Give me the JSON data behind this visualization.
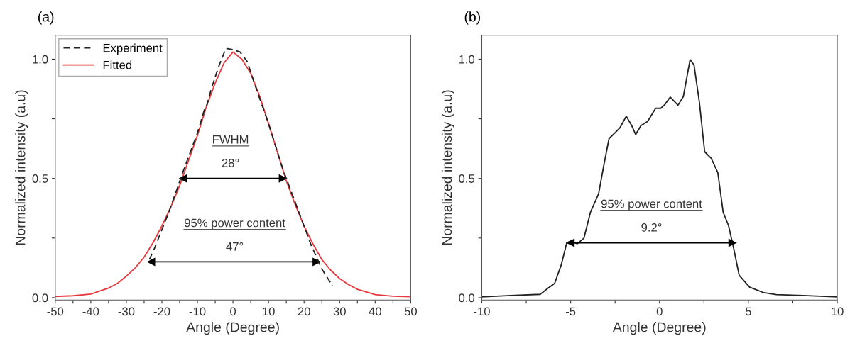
{
  "chart_data": [
    {
      "type": "line",
      "title": "(a)",
      "xlabel": "Angle (Degree)",
      "ylabel": "Normalized intensity (a.u)",
      "xlim": [
        -50,
        50
      ],
      "xticks": [
        -50,
        {
          "value": -45,
          "label": null
        },
        -40,
        {
          "value": -35,
          "label": null
        },
        -30,
        {
          "value": -25,
          "label": null
        },
        -20,
        {
          "value": -15,
          "label": null
        },
        -10,
        {
          "value": -5,
          "label": null
        },
        0,
        {
          "value": 5,
          "label": null
        },
        10,
        {
          "value": 15,
          "label": null
        },
        20,
        {
          "value": 25,
          "label": null
        },
        30,
        {
          "value": 35,
          "label": null
        },
        40,
        {
          "value": 45,
          "label": null
        },
        50
      ],
      "ylim": [
        -0.01,
        1.1
      ],
      "yticks": [
        {
          "value": 0,
          "label": "0.0"
        },
        {
          "value": 0.25,
          "label": null
        },
        0.5,
        {
          "value": 0.75,
          "label": null
        },
        {
          "value": 1,
          "label": "1.0"
        }
      ],
      "grid": false,
      "legend": "top left",
      "marker": "none",
      "series": [
        {
          "name": "Experiment",
          "color": "#222222",
          "line_style": "dashed",
          "x": [
            -23.5,
            -22,
            -18,
            -14,
            -10,
            -8,
            -7.5,
            -6,
            -4,
            -2,
            0,
            2,
            4,
            6,
            10,
            14,
            18,
            22,
            25,
            28
          ],
          "values": [
            0.16,
            0.21,
            0.36,
            0.53,
            0.69,
            0.79,
            0.8,
            0.88,
            0.97,
            1.045,
            1.04,
            1.03,
            0.99,
            0.9,
            0.73,
            0.54,
            0.38,
            0.22,
            0.12,
            0.05
          ]
        },
        {
          "name": "Fitted",
          "color": "#e8383d",
          "line_style": "solid",
          "x": [
            -50,
            -45,
            -40,
            -35,
            -32.5,
            -30,
            -27.5,
            -25,
            -22.5,
            -20,
            -17.5,
            -15,
            -12.5,
            -10,
            -7.5,
            -5,
            -2.5,
            0,
            2.5,
            5,
            7.5,
            10,
            12.5,
            15,
            17.5,
            20,
            22.5,
            25,
            27.5,
            30,
            32.5,
            35,
            40,
            45,
            50
          ],
          "values": [
            0.005,
            0.008,
            0.015,
            0.04,
            0.06,
            0.09,
            0.125,
            0.17,
            0.23,
            0.3,
            0.38,
            0.47,
            0.575,
            0.68,
            0.8,
            0.9,
            0.985,
            1.03,
            1.0,
            0.94,
            0.845,
            0.73,
            0.61,
            0.49,
            0.39,
            0.3,
            0.225,
            0.16,
            0.115,
            0.08,
            0.055,
            0.035,
            0.013,
            0.006,
            0.004
          ]
        },
        {
          "color": "#000000",
          "line_style": "solid",
          "marker": "triangle",
          "x": [
            -14,
            14
          ],
          "values": [
            0.5,
            0.5
          ]
        },
        {
          "color": "#000000",
          "line_style": "solid",
          "marker": "triangle",
          "x": [
            -23,
            23.5
          ],
          "values": [
            0.15,
            0.15
          ]
        }
      ],
      "annotations": [
        "FWHM",
        {
          "text": "28°",
          "x": -0.7,
          "y": 0.5
        },
        "95% power content",
        {
          "text": "47°",
          "x": 0.5,
          "y": 0.15
        }
      ]
    },
    {
      "type": "line",
      "title": "(b)",
      "xlabel": "Angle (Degree)",
      "ylabel": "Normalized intensity (a.u)",
      "xlim": [
        -10,
        10
      ],
      "xticks": [
        -10,
        {
          "value": -7.5,
          "label": null
        },
        -5,
        {
          "value": -2.5,
          "label": null
        },
        0,
        {
          "value": 2.5,
          "label": null
        },
        5,
        {
          "value": 7.5,
          "label": null
        },
        10
      ],
      "ylim": [
        -0.01,
        1.1
      ],
      "yticks": [
        {
          "value": 0,
          "label": "0.0"
        },
        {
          "value": 0.25,
          "label": null
        },
        0.5,
        {
          "value": 0.75,
          "label": null
        },
        {
          "value": 1,
          "label": "1.0"
        }
      ],
      "grid": false,
      "legend": false,
      "marker": "none",
      "series": [
        {
          "color": "#222222",
          "line_style": "solid",
          "x": [
            -10,
            -8.36,
            -6.72,
            -6.27,
            -5.9,
            -5.52,
            -5.22,
            -5.0,
            -4.63,
            -4.25,
            -3.88,
            -3.43,
            -3.13,
            -2.84,
            -2.54,
            -2.24,
            -1.87,
            -1.57,
            -1.34,
            -1.04,
            -0.67,
            -0.22,
            0.07,
            0.3,
            0.6,
            1.04,
            1.34,
            1.72,
            1.94,
            2.24,
            2.54,
            2.91,
            3.28,
            3.58,
            3.88,
            4.18,
            4.48,
            5.07,
            5.82,
            6.57,
            8.06,
            10
          ],
          "values": [
            0.003,
            0.009,
            0.014,
            0.04,
            0.06,
            0.14,
            0.23,
            0.237,
            0.226,
            0.25,
            0.36,
            0.435,
            0.557,
            0.667,
            0.689,
            0.711,
            0.761,
            0.722,
            0.684,
            0.722,
            0.739,
            0.794,
            0.794,
            0.81,
            0.841,
            0.807,
            0.843,
            0.998,
            0.976,
            0.821,
            0.612,
            0.584,
            0.524,
            0.358,
            0.303,
            0.204,
            0.094,
            0.044,
            0.022,
            0.013,
            0.009,
            0.003
          ]
        },
        {
          "color": "#000000",
          "line_style": "solid",
          "marker": "triangle",
          "x": [
            -5,
            4.1
          ],
          "values": [
            0.23,
            0.23
          ]
        }
      ],
      "annotations": [
        "95% power content",
        {
          "text": "9.2°",
          "x": -0.45,
          "y": 0.23
        }
      ]
    }
  ]
}
